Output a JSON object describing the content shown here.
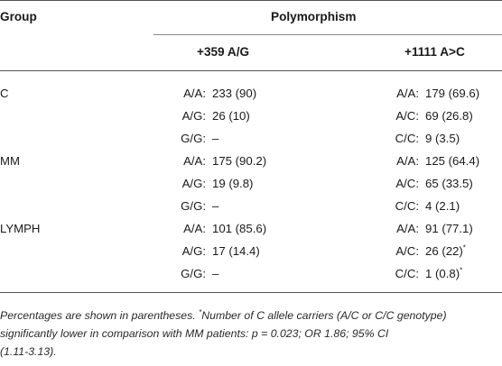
{
  "header": {
    "group_label": "Group",
    "polymorphism_label": "Polymorphism",
    "col1_label": "+359 A/G",
    "col2_label": "+1111 A>C"
  },
  "rows": [
    {
      "group": "C",
      "g1": "A/A:",
      "v1": "233 (90)",
      "g2": "A/A:",
      "v2": "179 (69.6)"
    },
    {
      "group": "",
      "g1": "A/G:",
      "v1": "26 (10)",
      "g2": "A/C:",
      "v2": "69 (26.8)"
    },
    {
      "group": "",
      "g1": "G/G:",
      "v1": "–",
      "g2": "C/C:",
      "v2": "9 (3.5)"
    },
    {
      "group": "MM",
      "g1": "A/A:",
      "v1": "175 (90.2)",
      "g2": "A/A:",
      "v2": "125 (64.4)"
    },
    {
      "group": "",
      "g1": "A/G:",
      "v1": "19 (9.8)",
      "g2": "A/C:",
      "v2": "65 (33.5)"
    },
    {
      "group": "",
      "g1": "G/G:",
      "v1": "–",
      "g2": "C/C:",
      "v2": "4 (2.1)"
    },
    {
      "group": "LYMPH",
      "g1": "A/A:",
      "v1": "101 (85.6)",
      "g2": "A/A:",
      "v2": "91 (77.1)"
    },
    {
      "group": "",
      "g1": "A/G:",
      "v1": "17 (14.4)",
      "g2": "A/C:",
      "v2": "26 (22)",
      "v2_mark": "*"
    },
    {
      "group": "",
      "g1": "G/G:",
      "v1": "–",
      "g2": "C/C:",
      "v2": "1 (0.8)",
      "v2_mark": "*"
    }
  ],
  "footnote": {
    "lead": "Percentages are shown in parentheses. ",
    "mark": "*",
    "line1_rest": "Number of C allele carriers (A/C or C/C genotype)",
    "line2": "significantly lower in comparison with MM patients: p = 0.023; OR 1.86; 95% CI",
    "line3": "(1.11-3.13)."
  }
}
